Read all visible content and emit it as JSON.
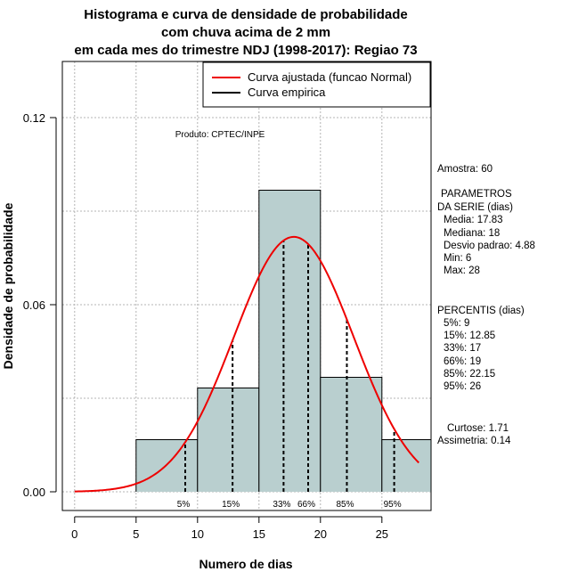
{
  "chart_data": {
    "type": "bar",
    "title": [
      "Histograma e curva de densidade de probabilidade",
      "com chuva acima de 2 mm",
      "em cada mes do trimestre NDJ (1998-2017): Regiao 73"
    ],
    "xlabel": "Numero de dias",
    "ylabel": "Densidade de probabilidade",
    "xlim": [
      -1,
      29
    ],
    "ylim": [
      -0.006,
      0.138
    ],
    "x_ticks": [
      0,
      5,
      10,
      15,
      20,
      25
    ],
    "x_tick_labels": [
      "0",
      "5",
      "10",
      "15",
      "20",
      "25"
    ],
    "y_ticks": [
      0.0,
      0.06,
      0.12
    ],
    "y_tick_labels": [
      "0.00",
      "0.06",
      "0.12"
    ],
    "grid_x": [
      0,
      5,
      10,
      15,
      20,
      25
    ],
    "grid_y": [
      0.0,
      0.06,
      0.12
    ],
    "bars": [
      {
        "x0": 5,
        "x1": 10,
        "density": 0.0167
      },
      {
        "x0": 10,
        "x1": 15,
        "density": 0.0333
      },
      {
        "x0": 15,
        "x1": 20,
        "density": 0.0967
      },
      {
        "x0": 20,
        "x1": 25,
        "density": 0.0367
      },
      {
        "x0": 25,
        "x1": 29,
        "density": 0.0167
      }
    ],
    "bar_color": "#b9cfcf",
    "normal_curve": {
      "mean": 17.83,
      "sd": 4.88,
      "x_from": 0,
      "x_to": 28,
      "color": "#ee0000"
    },
    "percentile_lines": [
      {
        "label": "5%",
        "x": 9
      },
      {
        "label": "15%",
        "x": 12.85
      },
      {
        "label": "33%",
        "x": 17
      },
      {
        "label": "66%",
        "x": 19
      },
      {
        "label": "85%",
        "x": 22.15
      },
      {
        "label": "95%",
        "x": 26
      }
    ],
    "legend": {
      "position": "top-right",
      "entries": [
        {
          "label": "Curva ajustada (funcao Normal)",
          "color": "#ee0000"
        },
        {
          "label": "Curva empirica",
          "color": "#000000"
        }
      ]
    },
    "annotation": "Produto: CPTEC/INPE",
    "side_panel": {
      "amostra": "Amostra: 60",
      "parametros_title_1": "PARAMETROS",
      "parametros_title_2": "DA SERIE (dias)",
      "parametros": [
        "Media: 17.83",
        "Mediana: 18",
        "Desvio padrao: 4.88",
        "Min: 6",
        "Max: 28"
      ],
      "percentis_title": "PERCENTIS (dias)",
      "percentis": [
        "5%: 9",
        "15%: 12.85",
        "33%: 17",
        "66%: 19",
        "85%: 22.15",
        "95%: 26"
      ],
      "curtose": "Curtose: 1.71",
      "assimetria": "Assimetria: 0.14"
    }
  }
}
